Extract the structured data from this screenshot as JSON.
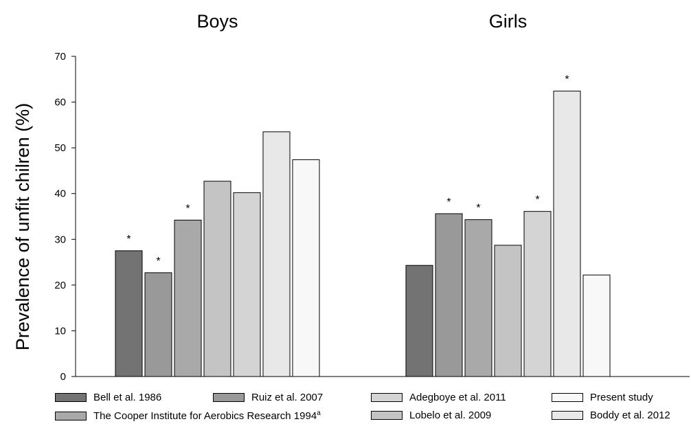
{
  "chart_data": {
    "type": "bar",
    "ylabel": "Prevalence of unfit chilren (%)",
    "ylim": [
      0,
      70
    ],
    "yticks": [
      0,
      10,
      20,
      30,
      40,
      50,
      60,
      70
    ],
    "groups": [
      {
        "title": "Boys",
        "values": [
          27.5,
          22.7,
          34.2,
          42.7,
          40.2,
          53.5,
          47.4
        ],
        "significant": [
          true,
          true,
          true,
          false,
          false,
          false,
          false
        ]
      },
      {
        "title": "Girls",
        "values": [
          24.3,
          35.6,
          34.3,
          28.7,
          36.1,
          62.4,
          22.2
        ],
        "significant": [
          false,
          true,
          true,
          false,
          true,
          true,
          false
        ]
      }
    ],
    "series": [
      {
        "name": "Bell et al. 1986",
        "color": "#737373"
      },
      {
        "name": "Ruiz et al. 2007",
        "color": "#999999"
      },
      {
        "name": "The Cooper Institute for Aerobics Research 1994",
        "superscript": "a",
        "color": "#a9a9a9"
      },
      {
        "name": "Lobelo et al. 2009",
        "color": "#c4c4c4"
      },
      {
        "name": "Adegboye et al. 2011",
        "color": "#d4d4d4"
      },
      {
        "name": "Boddy et al. 2012",
        "color": "#e8e8e8"
      },
      {
        "name": "Present study",
        "color": "#f8f8f8"
      }
    ],
    "significance_marker": "*"
  }
}
